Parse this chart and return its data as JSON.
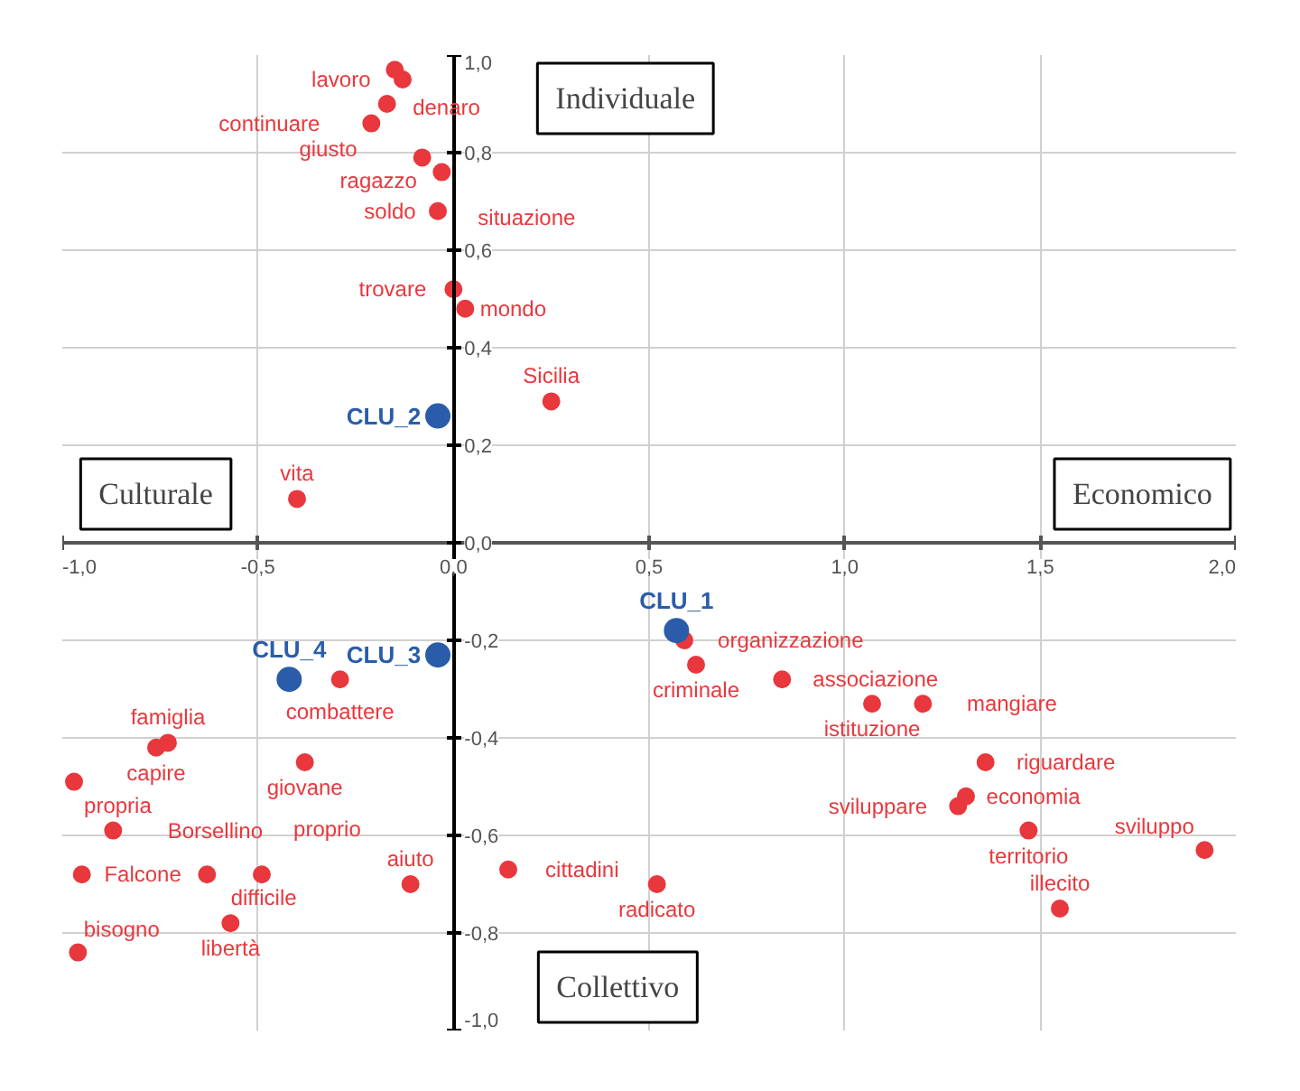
{
  "chart_data": {
    "type": "scatter",
    "xlim": [
      -1.0,
      2.0
    ],
    "ylim": [
      -1.0,
      1.0
    ],
    "xticks": [
      {
        "value": -1.0,
        "label": "-1,0"
      },
      {
        "value": -0.5,
        "label": "-0,5"
      },
      {
        "value": 0.0,
        "label": "0,0"
      },
      {
        "value": 0.5,
        "label": "0,5"
      },
      {
        "value": 1.0,
        "label": "1,0"
      },
      {
        "value": 1.5,
        "label": "1,5"
      },
      {
        "value": 2.0,
        "label": "2,0"
      }
    ],
    "yticks": [
      {
        "value": -1.0,
        "label": "-1,0"
      },
      {
        "value": -0.8,
        "label": "-0,8"
      },
      {
        "value": -0.6,
        "label": "-0,6"
      },
      {
        "value": -0.4,
        "label": "-0,4"
      },
      {
        "value": -0.2,
        "label": "-0,2"
      },
      {
        "value": 0.0,
        "label": "0,0"
      },
      {
        "value": 0.2,
        "label": "0,2"
      },
      {
        "value": 0.4,
        "label": "0,4"
      },
      {
        "value": 0.6,
        "label": "0,6"
      },
      {
        "value": 0.8,
        "label": "0,8"
      },
      {
        "value": 1.0,
        "label": "1,0"
      }
    ],
    "grid": true,
    "marker": "circle",
    "series": [
      {
        "color": "#e8383d",
        "x": [
          -0.15,
          -0.13,
          -0.17,
          -0.21,
          -0.08,
          -0.03,
          -0.04,
          0.0,
          0.03,
          0.25,
          -0.4,
          -0.29,
          -0.38,
          -0.73,
          -0.76,
          -0.97,
          -0.87,
          -0.95,
          -0.63,
          -0.49,
          -0.57,
          -0.96,
          -0.11,
          0.14,
          0.52,
          0.59,
          0.62,
          0.84,
          1.07,
          1.2,
          1.36,
          1.29,
          1.31,
          1.47,
          1.55,
          1.92
        ],
        "values": [
          0.97,
          0.95,
          0.9,
          0.86,
          0.79,
          0.76,
          0.68,
          0.52,
          0.48,
          0.29,
          0.09,
          -0.28,
          -0.45,
          -0.41,
          -0.42,
          -0.49,
          -0.59,
          -0.68,
          -0.68,
          -0.68,
          -0.78,
          -0.84,
          -0.7,
          -0.67,
          -0.7,
          -0.2,
          -0.25,
          -0.28,
          -0.33,
          -0.33,
          -0.45,
          -0.54,
          -0.52,
          -0.59,
          -0.75,
          -0.63
        ]
      },
      {
        "color": "#2a5caa",
        "x": [
          0.57,
          -0.04,
          -0.04,
          -0.42
        ],
        "values": [
          -0.18,
          0.26,
          -0.23,
          -0.28
        ]
      }
    ],
    "annotations": [
      "Individuale",
      "Culturale",
      "Economico",
      "Collettivo",
      {
        "text": "denaro",
        "x": -0.15,
        "y": 0.97
      },
      {
        "text": "lavoro",
        "x": -0.13,
        "y": 0.95
      },
      {
        "text": "giusto",
        "x": -0.17,
        "y": 0.9
      },
      {
        "text": "continuare",
        "x": -0.21,
        "y": 0.86
      },
      {
        "text": "ragazzo",
        "x": -0.08,
        "y": 0.79
      },
      {
        "text": "situazione",
        "x": -0.03,
        "y": 0.76
      },
      {
        "text": "soldo",
        "x": -0.04,
        "y": 0.68
      },
      {
        "text": "trovare",
        "x": 0.0,
        "y": 0.52
      },
      {
        "text": "mondo",
        "x": 0.03,
        "y": 0.48
      },
      {
        "text": "Sicilia",
        "x": 0.25,
        "y": 0.29
      },
      {
        "text": "vita",
        "x": -0.4,
        "y": 0.09
      },
      {
        "text": "combattere",
        "x": -0.29,
        "y": -0.28
      },
      {
        "text": "giovane",
        "x": -0.38,
        "y": -0.45
      },
      {
        "text": "famiglia",
        "x": -0.73,
        "y": -0.41
      },
      {
        "text": "capire",
        "x": -0.76,
        "y": -0.42
      },
      {
        "text": "propria",
        "x": -0.97,
        "y": -0.49
      },
      {
        "text": "Borsellino",
        "x": -0.87,
        "y": -0.59
      },
      {
        "text": "Falcone",
        "x": -0.95,
        "y": -0.68
      },
      {
        "text": "difficile",
        "x": -0.63,
        "y": -0.68
      },
      {
        "text": "proprio",
        "x": -0.49,
        "y": -0.68
      },
      {
        "text": "libertà",
        "x": -0.57,
        "y": -0.78
      },
      {
        "text": "bisogno",
        "x": -0.96,
        "y": -0.84
      },
      {
        "text": "aiuto",
        "x": -0.11,
        "y": -0.7
      },
      {
        "text": "cittadini",
        "x": 0.14,
        "y": -0.67
      },
      {
        "text": "radicato",
        "x": 0.52,
        "y": -0.7
      },
      {
        "text": "organizzazione",
        "x": 0.59,
        "y": -0.2
      },
      {
        "text": "criminale",
        "x": 0.62,
        "y": -0.25
      },
      {
        "text": "associazione",
        "x": 0.84,
        "y": -0.28
      },
      {
        "text": "istituzione",
        "x": 1.07,
        "y": -0.33
      },
      {
        "text": "mangiare",
        "x": 1.2,
        "y": -0.33
      },
      {
        "text": "riguardare",
        "x": 1.36,
        "y": -0.45
      },
      {
        "text": "sviluppare",
        "x": 1.29,
        "y": -0.54
      },
      {
        "text": "economia",
        "x": 1.31,
        "y": -0.52
      },
      {
        "text": "territorio",
        "x": 1.47,
        "y": -0.59
      },
      {
        "text": "illecito",
        "x": 1.55,
        "y": -0.75
      },
      {
        "text": "sviluppo",
        "x": 1.92,
        "y": -0.63
      },
      {
        "text": "CLU_1",
        "x": 0.57,
        "y": -0.18
      },
      {
        "text": "CLU_2",
        "x": -0.04,
        "y": 0.26
      },
      {
        "text": "CLU_3",
        "x": -0.04,
        "y": -0.23
      },
      {
        "text": "CLU_4",
        "x": -0.42,
        "y": -0.28
      }
    ]
  }
}
